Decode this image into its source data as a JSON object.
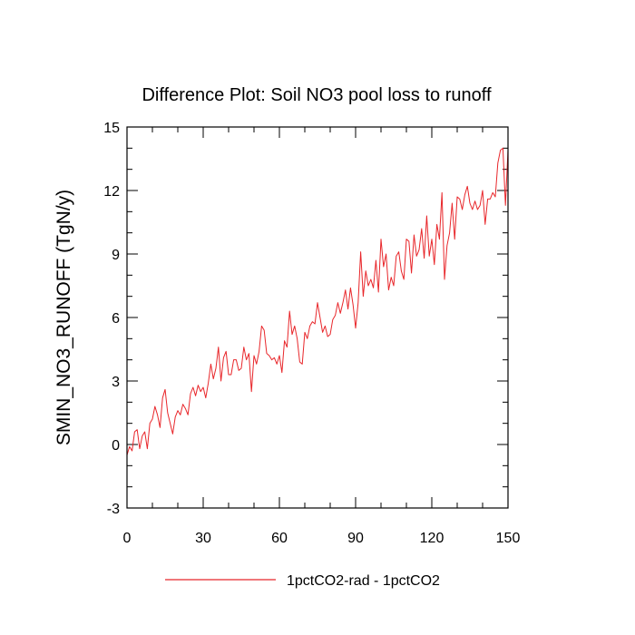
{
  "chart_data": {
    "type": "line",
    "title": "Difference Plot: Soil NO3 pool loss to runoff",
    "xlabel": "",
    "ylabel": "SMIN_NO3_RUNOFF  (TgN/y)",
    "xlim": [
      0,
      150
    ],
    "ylim": [
      -3,
      15
    ],
    "xticks": [
      0,
      30,
      60,
      90,
      120,
      150
    ],
    "yticks": [
      -3,
      0,
      3,
      6,
      9,
      12,
      15
    ],
    "grid": false,
    "legend_position": "bottom-center",
    "series": [
      {
        "name": "1pctCO2-rad - 1pctCO2",
        "color": "#e8262a",
        "x": [
          0,
          1,
          2,
          3,
          4,
          5,
          6,
          7,
          8,
          9,
          10,
          11,
          12,
          13,
          14,
          15,
          16,
          17,
          18,
          19,
          20,
          21,
          22,
          23,
          24,
          25,
          26,
          27,
          28,
          29,
          30,
          31,
          32,
          33,
          34,
          35,
          36,
          37,
          38,
          39,
          40,
          41,
          42,
          43,
          44,
          45,
          46,
          47,
          48,
          49,
          50,
          51,
          52,
          53,
          54,
          55,
          56,
          57,
          58,
          59,
          60,
          61,
          62,
          63,
          64,
          65,
          66,
          67,
          68,
          69,
          70,
          71,
          72,
          73,
          74,
          75,
          76,
          77,
          78,
          79,
          80,
          81,
          82,
          83,
          84,
          85,
          86,
          87,
          88,
          89,
          90,
          91,
          92,
          93,
          94,
          95,
          96,
          97,
          98,
          99,
          100,
          101,
          102,
          103,
          104,
          105,
          106,
          107,
          108,
          109,
          110,
          111,
          112,
          113,
          114,
          115,
          116,
          117,
          118,
          119,
          120,
          121,
          122,
          123,
          124,
          125,
          126,
          127,
          128,
          129,
          130,
          131,
          132,
          133,
          134,
          135,
          136,
          137,
          138,
          139,
          140,
          141,
          142,
          143,
          144,
          145,
          146,
          147,
          148,
          149,
          150
        ],
        "y": [
          -0.5,
          -0.1,
          -0.3,
          0.6,
          0.7,
          -0.2,
          0.4,
          0.6,
          -0.2,
          1.0,
          1.2,
          1.8,
          1.4,
          0.8,
          2.2,
          2.6,
          1.5,
          1.0,
          0.5,
          1.3,
          1.6,
          1.4,
          1.9,
          1.7,
          1.4,
          2.4,
          2.7,
          2.3,
          2.8,
          2.5,
          2.7,
          2.2,
          2.9,
          3.8,
          3.1,
          3.6,
          4.6,
          3.0,
          4.1,
          4.4,
          3.3,
          3.3,
          4.0,
          4.0,
          3.5,
          3.6,
          4.6,
          4.0,
          4.3,
          2.5,
          4.2,
          3.8,
          4.4,
          5.6,
          5.4,
          4.3,
          4.2,
          4.0,
          4.1,
          3.8,
          4.2,
          3.4,
          4.9,
          4.6,
          6.3,
          5.2,
          5.6,
          5.0,
          3.9,
          3.8,
          5.3,
          5.0,
          5.6,
          5.8,
          5.7,
          6.7,
          6.0,
          5.3,
          5.6,
          5.1,
          5.2,
          5.9,
          6.1,
          6.7,
          6.2,
          6.7,
          7.3,
          6.4,
          7.4,
          6.6,
          5.5,
          6.7,
          9.1,
          7.0,
          8.2,
          7.5,
          7.8,
          7.4,
          8.7,
          7.2,
          9.7,
          8.4,
          9.0,
          7.3,
          7.9,
          7.5,
          8.9,
          9.1,
          8.2,
          7.8,
          9.7,
          9.6,
          8.1,
          9.9,
          8.9,
          9.2,
          10.2,
          8.8,
          10.8,
          8.9,
          9.7,
          8.5,
          10.4,
          9.7,
          11.9,
          7.8,
          9.4,
          10.0,
          11.4,
          9.7,
          11.7,
          11.6,
          11.1,
          11.8,
          12.2,
          11.4,
          11.1,
          11.5,
          11.1,
          11.3,
          12.0,
          10.4,
          11.6,
          11.6,
          11.9,
          11.7,
          13.3,
          13.9,
          14.0,
          11.3,
          13.9
        ]
      }
    ]
  }
}
